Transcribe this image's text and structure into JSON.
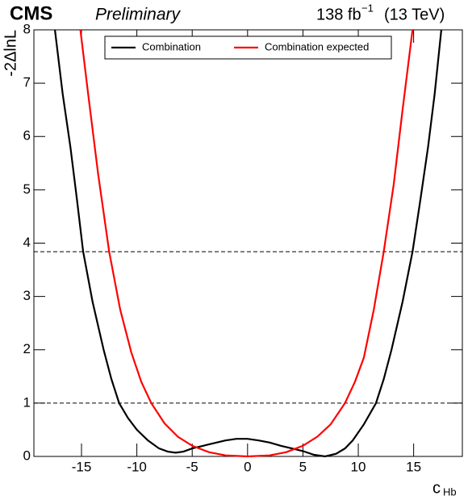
{
  "chart_data": {
    "type": "line",
    "experiment": "CMS",
    "status": "Preliminary",
    "lumi": "138 fb",
    "lumi_exponent": "−1",
    "energy": "(13 TeV)",
    "xlabel": "c",
    "xlabel_sub": "Hb",
    "ylabel": "-2ΔlnL",
    "xlim": [
      -19.3,
      19.4
    ],
    "ylim": [
      0,
      8
    ],
    "xticks": [
      -15,
      -10,
      -5,
      0,
      5,
      10,
      15
    ],
    "yticks": [
      0,
      1,
      2,
      3,
      4,
      5,
      6,
      7,
      8
    ],
    "hlines": [
      1,
      3.84
    ],
    "series": [
      {
        "name": "Combination",
        "color": "#000000",
        "x": [
          -17.4,
          -16.7,
          -16,
          -15.4,
          -14.85,
          -14,
          -13,
          -12.3,
          -11.6,
          -10.8,
          -10,
          -9,
          -8,
          -7.2,
          -6.5,
          -5.8,
          -5,
          -4,
          -3,
          -2,
          -1,
          0,
          1,
          2,
          3,
          4,
          5,
          6,
          7,
          8,
          8.8,
          9.5,
          10.5,
          11.6,
          12.3,
          13,
          14,
          14.9,
          15.6,
          16.3,
          16.9,
          17.5
        ],
        "values": [
          8,
          6.8,
          5.8,
          4.8,
          3.84,
          2.9,
          2,
          1.45,
          1,
          0.72,
          0.5,
          0.3,
          0.15,
          0.09,
          0.07,
          0.09,
          0.15,
          0.2,
          0.25,
          0.3,
          0.33,
          0.33,
          0.3,
          0.26,
          0.2,
          0.15,
          0.1,
          0.03,
          0,
          0.05,
          0.15,
          0.3,
          0.6,
          1,
          1.45,
          2,
          2.9,
          3.84,
          4.8,
          5.8,
          6.8,
          8
        ]
      },
      {
        "name": "Combination expected",
        "color": "#ff0000",
        "x": [
          -15.1,
          -14.4,
          -13.5,
          -12.5,
          -11.5,
          -10.5,
          -9.6,
          -8.7,
          -7.5,
          -6.3,
          -5,
          -3.5,
          -2,
          0,
          2,
          3.5,
          5,
          6.3,
          7.5,
          8.8,
          9.7,
          10.5,
          11.4,
          12.3,
          13.2,
          14,
          14.9
        ],
        "values": [
          8,
          6.8,
          5.3,
          3.84,
          2.75,
          1.95,
          1.4,
          1,
          0.62,
          0.37,
          0.2,
          0.08,
          0.02,
          0,
          0.02,
          0.08,
          0.2,
          0.37,
          0.6,
          1,
          1.4,
          1.85,
          2.75,
          3.84,
          5.1,
          6.5,
          8
        ]
      }
    ],
    "legend": "top"
  }
}
